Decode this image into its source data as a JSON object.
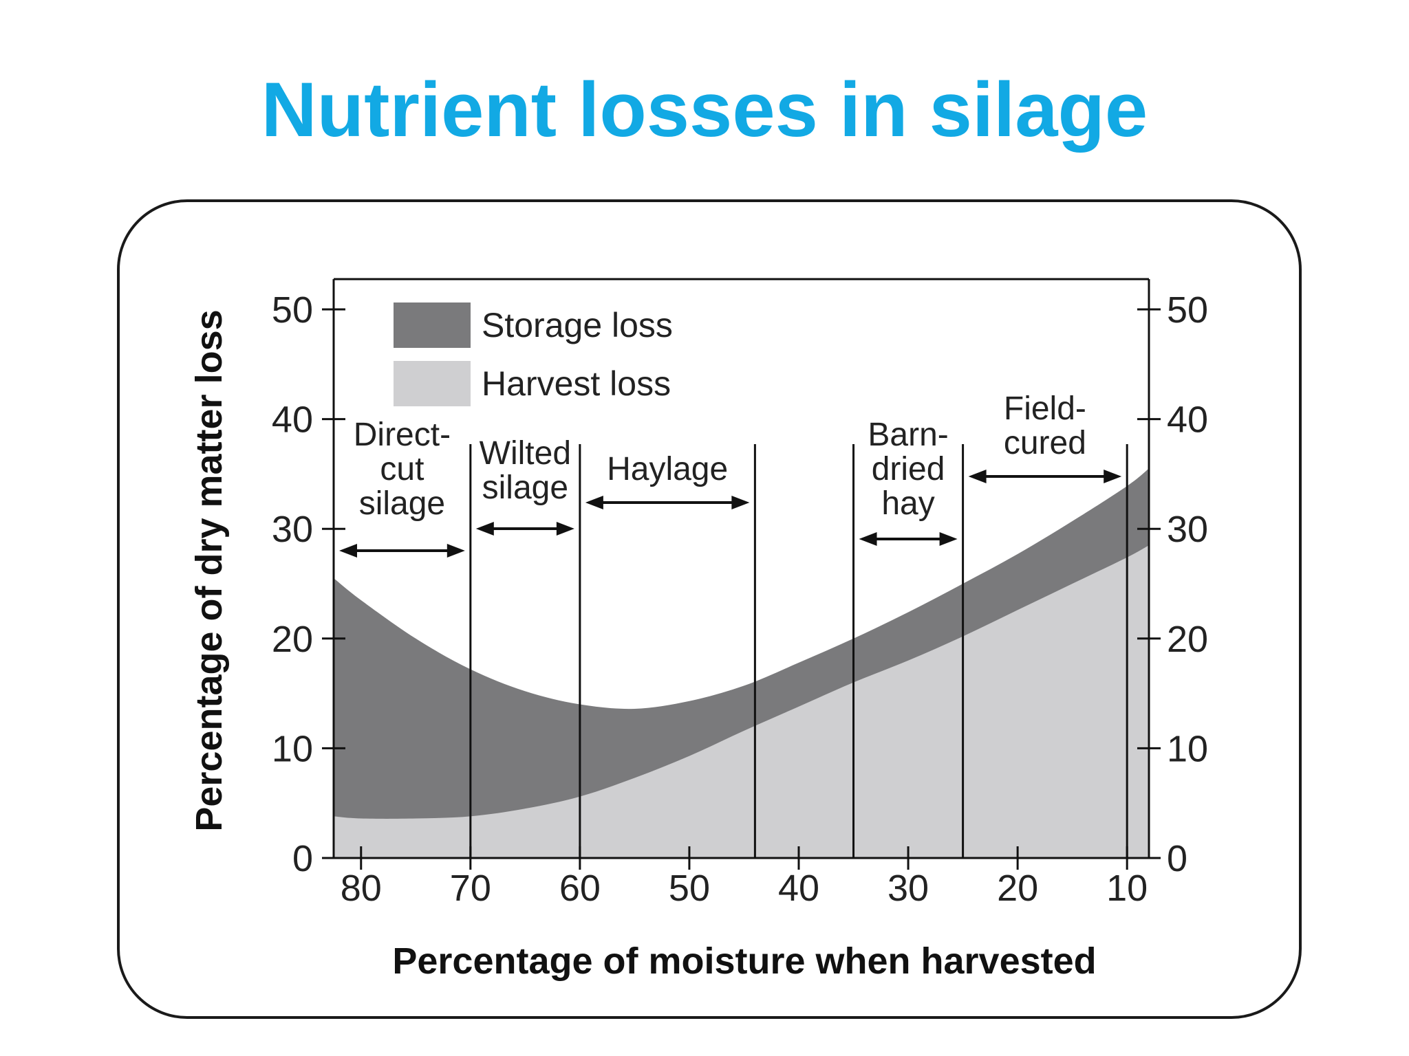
{
  "title": "Nutrient losses in silage",
  "colors": {
    "title": "#12a9e4",
    "storage_loss": "#7a7a7c",
    "harvest_loss": "#cfcfd1",
    "ink": "#111111"
  },
  "chart_data": {
    "type": "area",
    "stacked": true,
    "xlabel": "Percentage of moisture when harvested",
    "ylabel": "Percentage of dry matter loss",
    "xlim": [
      82.5,
      8
    ],
    "x_reversed": true,
    "ylim": [
      0,
      50
    ],
    "x_ticks": [
      80,
      70,
      60,
      50,
      40,
      30,
      20,
      10
    ],
    "y_ticks": [
      0,
      10,
      20,
      30,
      40,
      50
    ],
    "y_axis_right": true,
    "legend": [
      {
        "label": "Storage loss",
        "series": "storage"
      },
      {
        "label": "Harvest loss",
        "series": "harvest"
      }
    ],
    "legend_position": "top-left",
    "x": [
      82.5,
      80,
      75,
      70,
      65,
      60,
      55,
      50,
      45,
      40,
      35,
      30,
      25,
      20,
      15,
      10,
      8
    ],
    "series": [
      {
        "name": "Harvest loss",
        "key": "harvest",
        "values": [
          3.8,
          3.6,
          3.6,
          3.8,
          4.5,
          5.6,
          7.3,
          9.3,
          11.6,
          13.8,
          16.0,
          18.0,
          20.2,
          22.6,
          25.0,
          27.4,
          28.5
        ]
      },
      {
        "name": "Storage loss",
        "key": "total",
        "values": [
          25.5,
          23.5,
          20.0,
          17.2,
          15.2,
          14.0,
          13.6,
          14.3,
          15.7,
          17.8,
          20.0,
          22.4,
          25.0,
          27.7,
          30.7,
          33.9,
          35.5
        ]
      }
    ],
    "regions": [
      {
        "label_lines": [
          "Direct-",
          "cut",
          "silage"
        ],
        "from": 82.5,
        "to": 70
      },
      {
        "label_lines": [
          "Wilted",
          "silage"
        ],
        "from": 70,
        "to": 60
      },
      {
        "label_lines": [
          "Haylage"
        ],
        "from": 60,
        "to": 44
      },
      {
        "label_lines": [
          "Barn-",
          "dried",
          "hay"
        ],
        "from": 35,
        "to": 25
      },
      {
        "label_lines": [
          "Field-",
          "cured"
        ],
        "from": 25,
        "to": 10
      }
    ],
    "divider_lines": [
      70,
      60,
      44,
      35,
      25,
      10
    ]
  }
}
